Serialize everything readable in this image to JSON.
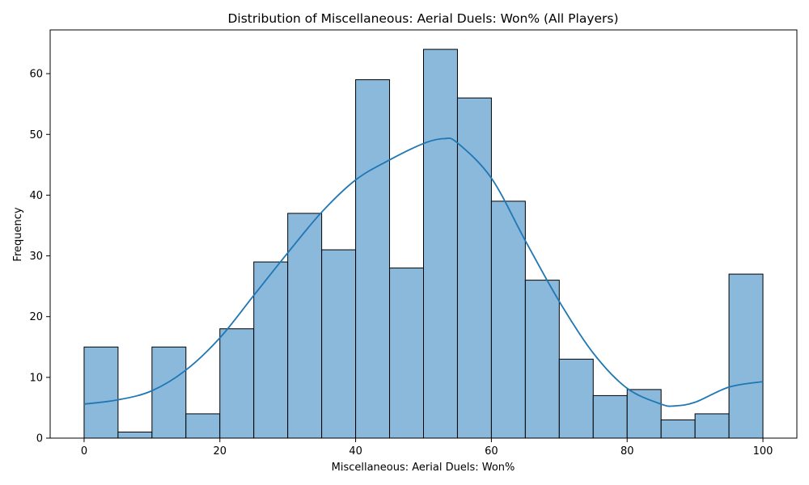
{
  "chart_data": {
    "type": "bar",
    "title": "Distribution of Miscellaneous: Aerial Duels: Won% (All Players)",
    "xlabel": "Miscellaneous: Aerial Duels: Won%",
    "ylabel": "Frequency",
    "xlim": [
      -5,
      105
    ],
    "ylim": [
      0,
      67.2
    ],
    "x_ticks": [
      0,
      20,
      40,
      60,
      80,
      100
    ],
    "y_ticks": [
      0,
      10,
      20,
      30,
      40,
      50,
      60
    ],
    "bin_edges": [
      0,
      5,
      10,
      15,
      20,
      25,
      30,
      35,
      40,
      45,
      50,
      55,
      60,
      65,
      70,
      75,
      80,
      85,
      90,
      95,
      100
    ],
    "values": [
      15,
      1,
      15,
      4,
      18,
      29,
      37,
      31,
      59,
      28,
      64,
      56,
      39,
      26,
      13,
      7,
      8,
      3,
      4,
      27
    ],
    "kde": {
      "x": [
        0,
        5,
        10,
        15,
        20,
        25,
        30,
        35,
        40,
        45,
        50,
        53,
        55,
        60,
        65,
        70,
        75,
        80,
        85,
        87,
        90,
        95,
        100
      ],
      "y": [
        5.6,
        6.3,
        7.8,
        11.2,
        16.5,
        23.5,
        30.5,
        37.2,
        42.5,
        45.8,
        48.5,
        49.3,
        48.6,
        42.8,
        32.5,
        22.5,
        14.0,
        8.2,
        5.6,
        5.3,
        5.9,
        8.4,
        9.3
      ]
    },
    "colors": {
      "bar_fill": "#8ab9dc",
      "bar_edge": "#000000",
      "kde_line": "#1f77b4"
    },
    "grid": false,
    "legend": "none"
  }
}
